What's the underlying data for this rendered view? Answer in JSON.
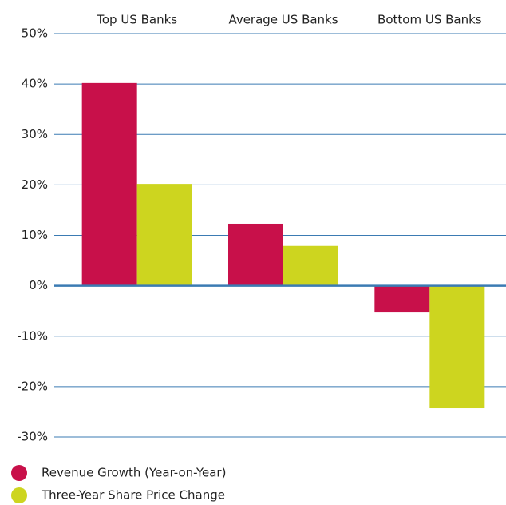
{
  "chart_data": {
    "type": "bar",
    "categories": [
      "Top US Banks",
      "Average US Banks",
      "Bottom US Banks"
    ],
    "series": [
      {
        "name": "Revenue Growth (Year-on-Year)",
        "color": "#c8104a",
        "values": [
          40.2,
          12.3,
          -5.3
        ]
      },
      {
        "name": "Three-Year Share Price Change",
        "color": "#cdd51f",
        "values": [
          20.2,
          7.9,
          -24.3
        ]
      }
    ],
    "ylim": [
      -30,
      50
    ],
    "yticks": [
      {
        "value": -30,
        "label": "-30%"
      },
      {
        "value": -20,
        "label": "-20%"
      },
      {
        "value": -10,
        "label": "-10%"
      },
      {
        "value": 0,
        "label": "0%"
      },
      {
        "value": 10,
        "label": "10%"
      },
      {
        "value": 20,
        "label": "20%"
      },
      {
        "value": 30,
        "label": "30%"
      },
      {
        "value": 40,
        "label": "40%"
      },
      {
        "value": 50,
        "label": "50%"
      }
    ],
    "grid": true
  }
}
